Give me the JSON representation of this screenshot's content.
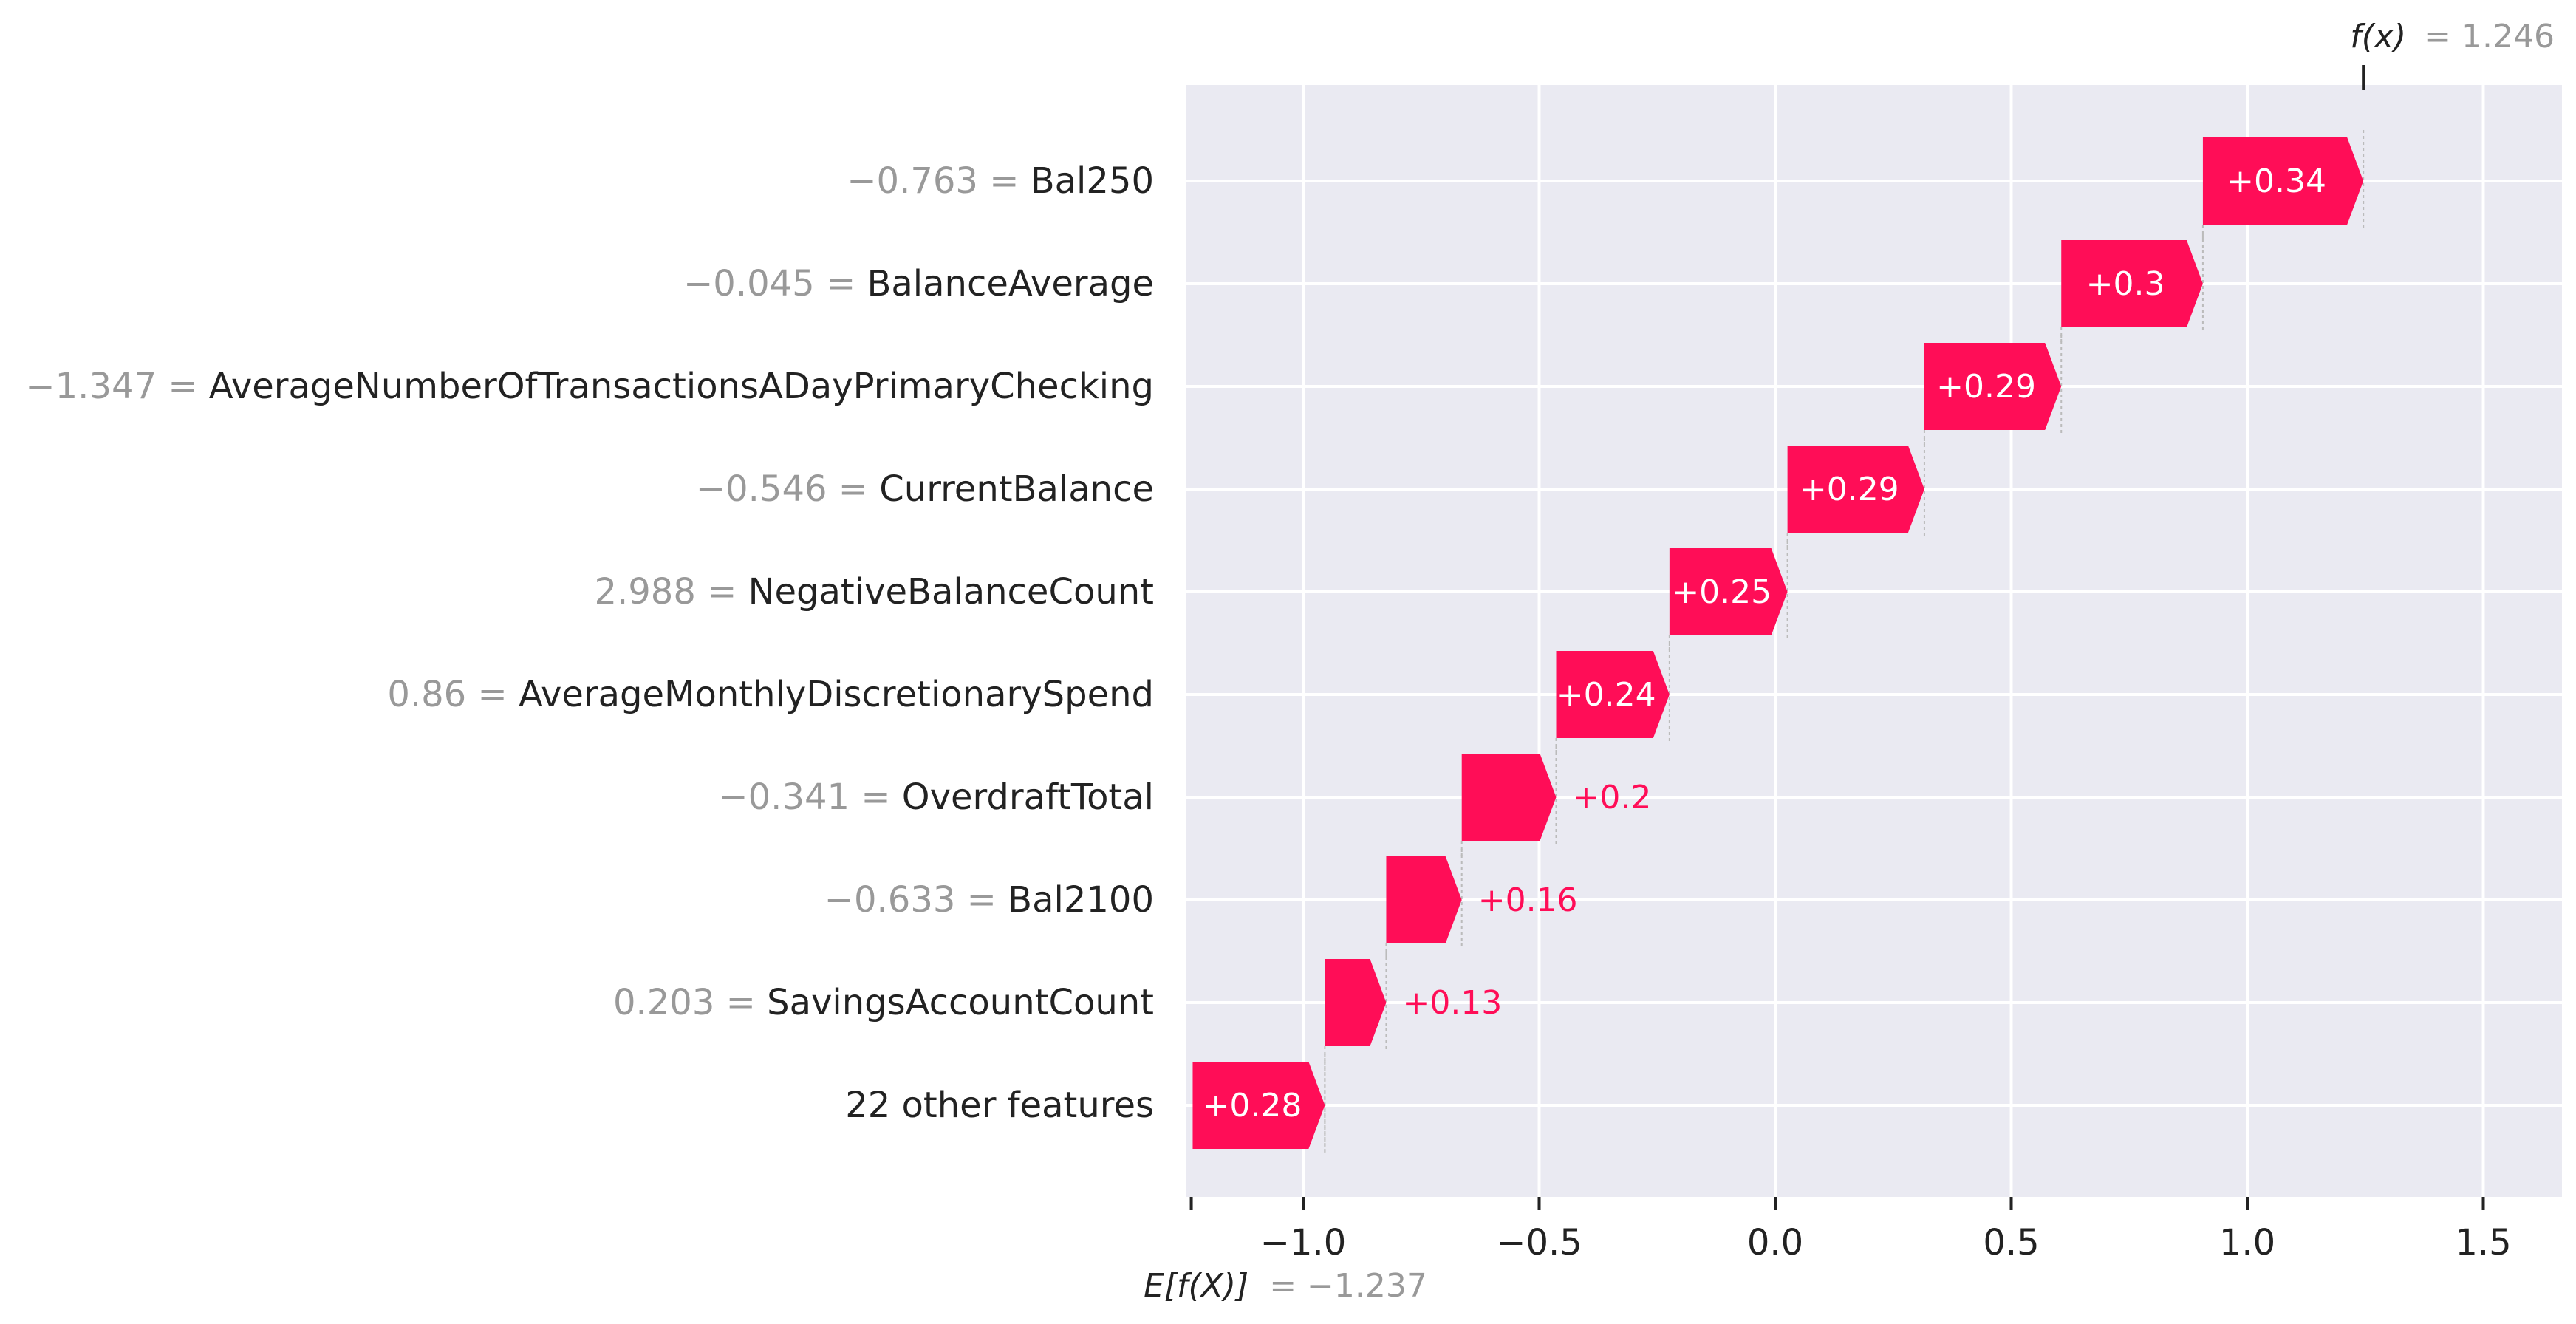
{
  "chart_data": {
    "type": "waterfall",
    "base_value": -1.237,
    "output_value": 1.246,
    "base_label": "E[f(X)]",
    "base_label_text": "= −1.237",
    "output_label": "f(x)",
    "output_label_text": "= 1.246",
    "xlim": [
      -1.25,
      1.65
    ],
    "xticks": [
      -1.0,
      -0.5,
      0.0,
      0.5,
      1.0,
      1.5
    ],
    "xtick_labels": [
      "−1.0",
      "−0.5",
      "0.0",
      "0.5",
      "1.0",
      "1.5"
    ],
    "grid": true,
    "features": [
      {
        "value_text": "−0.763 =",
        "name": "Bal250",
        "contribution": 0.34,
        "label": "+0.34"
      },
      {
        "value_text": "−0.045 =",
        "name": "BalanceAverage",
        "contribution": 0.3,
        "label": "+0.3"
      },
      {
        "value_text": "−1.347 =",
        "name": "AverageNumberOfTransactionsADayPrimaryChecking",
        "contribution": 0.29,
        "label": "+0.29"
      },
      {
        "value_text": "−0.546 =",
        "name": "CurrentBalance",
        "contribution": 0.29,
        "label": "+0.29"
      },
      {
        "value_text": "2.988 =",
        "name": "NegativeBalanceCount",
        "contribution": 0.25,
        "label": "+0.25"
      },
      {
        "value_text": "0.86 =",
        "name": "AverageMonthlyDiscretionarySpend",
        "contribution": 0.24,
        "label": "+0.24"
      },
      {
        "value_text": "−0.341 =",
        "name": "OverdraftTotal",
        "contribution": 0.2,
        "label": "+0.2"
      },
      {
        "value_text": "−0.633 =",
        "name": "Bal2100",
        "contribution": 0.16,
        "label": "+0.16"
      },
      {
        "value_text": "0.203 =",
        "name": "SavingsAccountCount",
        "contribution": 0.13,
        "label": "+0.13"
      },
      {
        "value_text": "",
        "name": "22 other features",
        "contribution": 0.28,
        "label": "+0.28"
      }
    ],
    "colors": {
      "positive": "#ff0d57",
      "plot_background": "#eaeaf2",
      "grid": "#ffffff",
      "value_text": "#999999",
      "name_text": "#222222",
      "bar_text_inside": "#ffffff"
    }
  }
}
